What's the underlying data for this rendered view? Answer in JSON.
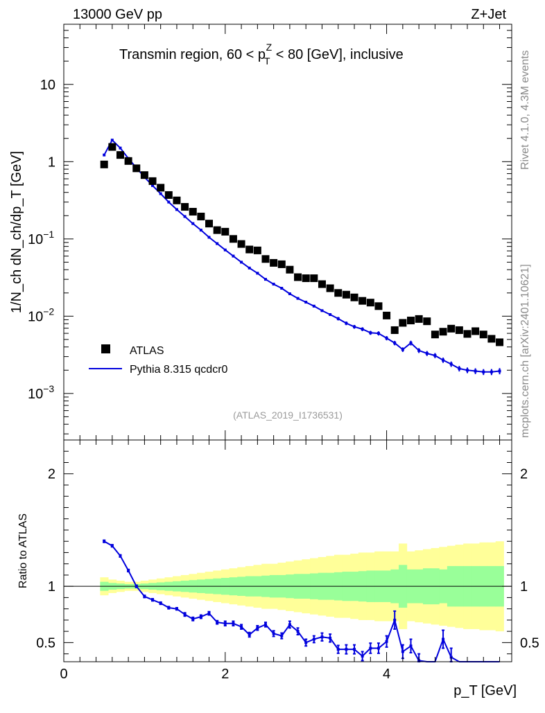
{
  "chart_data": {
    "type": "scatter",
    "header_left": "13000 GeV pp",
    "header_right": "Z+Jet",
    "title_main": "Transmin region, 60 < p",
    "title_sup": "Z",
    "title_sub": "T",
    "title_rest": " < 80 [GeV], inclusive",
    "ylabel": "1/N_ch dN_ch/dp_T [GeV]",
    "xlabel": "p_T [GeV]",
    "ratio_ylabel": "Ratio to ATLAS",
    "analysis_tag": "(ATLAS_2019_I1736531)",
    "rivet_label": "Rivet 4.1.0,  4.3M events",
    "mcplots_label": "mcplots.cern.ch [arXiv:2401.10621]",
    "xlim": [
      0,
      5.55
    ],
    "ylim_log": [
      0.00025,
      60
    ],
    "ratio_ylim": [
      0.33,
      2.3
    ],
    "x_ticks": [
      "0",
      "2",
      "4"
    ],
    "x_tick_values": [
      0,
      2,
      4
    ],
    "y_ticks": [
      {
        "base": "10",
        "exp": "−3",
        "value": 0.001
      },
      {
        "base": "10",
        "exp": "−2",
        "value": 0.01
      },
      {
        "base": "10",
        "exp": "−1",
        "value": 0.1
      },
      {
        "base": "1",
        "exp": "",
        "value": 1
      },
      {
        "base": "10",
        "exp": "",
        "value": 10
      }
    ],
    "ratio_ticks": [
      "0.5",
      "1",
      "2"
    ],
    "ratio_tick_values": [
      0.5,
      1,
      2
    ],
    "legend": [
      "ATLAS",
      "Pythia 8.315 qcdcr0"
    ],
    "x": [
      0.5,
      0.6,
      0.7,
      0.8,
      0.9,
      1.0,
      1.1,
      1.2,
      1.3,
      1.4,
      1.5,
      1.6,
      1.7,
      1.8,
      1.9,
      2.0,
      2.1,
      2.2,
      2.3,
      2.4,
      2.5,
      2.6,
      2.7,
      2.8,
      2.9,
      3.0,
      3.1,
      3.2,
      3.3,
      3.4,
      3.5,
      3.6,
      3.7,
      3.8,
      3.9,
      4.0,
      4.1,
      4.2,
      4.3,
      4.4,
      4.5,
      4.6,
      4.7,
      4.8,
      4.9,
      5.0,
      5.1,
      5.2,
      5.3,
      5.4
    ],
    "atlas_values": [
      0.92,
      1.55,
      1.22,
      1.02,
      0.82,
      0.67,
      0.56,
      0.46,
      0.37,
      0.315,
      0.26,
      0.225,
      0.195,
      0.158,
      0.13,
      0.124,
      0.1,
      0.086,
      0.073,
      0.071,
      0.055,
      0.049,
      0.047,
      0.04,
      0.032,
      0.031,
      0.031,
      0.026,
      0.023,
      0.02,
      0.019,
      0.0175,
      0.0158,
      0.015,
      0.0135,
      0.0102,
      0.0066,
      0.0082,
      0.0088,
      0.0092,
      0.0086,
      0.0058,
      0.0063,
      0.0069,
      0.0066,
      0.0059,
      0.0064,
      0.0058,
      0.0051,
      0.0046
    ],
    "pythia_values": [
      1.22,
      1.9,
      1.5,
      1.1,
      0.83,
      0.63,
      0.49,
      0.385,
      0.3,
      0.24,
      0.195,
      0.158,
      0.13,
      0.105,
      0.087,
      0.072,
      0.06,
      0.05,
      0.042,
      0.036,
      0.03,
      0.026,
      0.023,
      0.0195,
      0.017,
      0.0152,
      0.0135,
      0.0118,
      0.0105,
      0.0093,
      0.0081,
      0.0073,
      0.0068,
      0.0061,
      0.006,
      0.0052,
      0.0045,
      0.0037,
      0.0045,
      0.0036,
      0.0033,
      0.0031,
      0.0027,
      0.0024,
      0.0021,
      0.002,
      0.00195,
      0.0019,
      0.0019,
      0.00195
    ],
    "ratio_values": [
      1.4,
      1.36,
      1.27,
      1.14,
      1.0,
      0.91,
      0.88,
      0.85,
      0.81,
      0.8,
      0.75,
      0.71,
      0.73,
      0.76,
      0.68,
      0.67,
      0.67,
      0.64,
      0.57,
      0.63,
      0.66,
      0.58,
      0.56,
      0.66,
      0.6,
      0.5,
      0.53,
      0.55,
      0.54,
      0.44,
      0.44,
      0.44,
      0.38,
      0.45,
      0.45,
      0.51,
      0.7,
      0.42,
      0.47,
      0.34,
      0.33,
      0.33,
      0.53,
      0.37,
      0.33,
      0.33,
      0.33,
      0.33,
      0.33,
      0.33
    ],
    "ratio_errors": [
      0.01,
      0.01,
      0.01,
      0.01,
      0.01,
      0.01,
      0.01,
      0.01,
      0.01,
      0.01,
      0.015,
      0.015,
      0.015,
      0.015,
      0.015,
      0.02,
      0.02,
      0.02,
      0.02,
      0.02,
      0.02,
      0.025,
      0.025,
      0.03,
      0.03,
      0.03,
      0.03,
      0.035,
      0.035,
      0.035,
      0.04,
      0.04,
      0.04,
      0.045,
      0.045,
      0.05,
      0.08,
      0.06,
      0.06,
      0.06,
      0.06,
      0.06,
      0.08,
      0.08,
      0.08,
      0.08,
      0.08,
      0.08,
      0.08,
      0.08
    ],
    "band_inner": [
      0.04,
      0.03,
      0.025,
      0.02,
      0.02,
      0.025,
      0.03,
      0.035,
      0.04,
      0.045,
      0.05,
      0.055,
      0.06,
      0.065,
      0.07,
      0.075,
      0.08,
      0.085,
      0.09,
      0.09,
      0.095,
      0.1,
      0.1,
      0.105,
      0.11,
      0.11,
      0.115,
      0.12,
      0.12,
      0.125,
      0.13,
      0.13,
      0.135,
      0.14,
      0.14,
      0.14,
      0.15,
      0.19,
      0.15,
      0.15,
      0.16,
      0.16,
      0.15,
      0.18,
      0.18,
      0.18,
      0.18,
      0.18,
      0.18,
      0.18
    ],
    "band_outer": [
      0.08,
      0.06,
      0.05,
      0.04,
      0.04,
      0.05,
      0.06,
      0.07,
      0.08,
      0.09,
      0.1,
      0.11,
      0.12,
      0.13,
      0.14,
      0.15,
      0.16,
      0.17,
      0.18,
      0.19,
      0.2,
      0.2,
      0.21,
      0.22,
      0.23,
      0.24,
      0.25,
      0.26,
      0.27,
      0.28,
      0.28,
      0.29,
      0.3,
      0.3,
      0.31,
      0.31,
      0.31,
      0.38,
      0.31,
      0.32,
      0.33,
      0.34,
      0.35,
      0.36,
      0.37,
      0.38,
      0.38,
      0.39,
      0.39,
      0.4
    ],
    "colors": {
      "atlas": "#000000",
      "pythia": "#0000dd",
      "band_inner": "#99ff99",
      "band_outer": "#ffff99"
    }
  }
}
